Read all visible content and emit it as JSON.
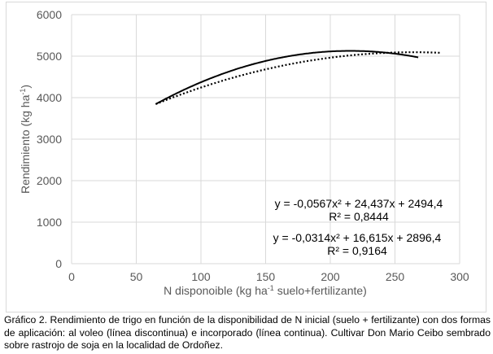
{
  "chart_data": {
    "type": "line",
    "xlabel": {
      "pre": "N disponoible (kg ha",
      "sup": "-1",
      "post": " suelo+fertilizante)"
    },
    "ylabel": {
      "pre": "Rendimiento (kg ha",
      "sup": "-1",
      "post": ")"
    },
    "xlim": [
      0,
      300
    ],
    "ylim": [
      0,
      6000
    ],
    "xticks": [
      "0",
      "50",
      "100",
      "150",
      "200",
      "250",
      "300"
    ],
    "yticks": [
      "0",
      "1000",
      "2000",
      "3000",
      "4000",
      "5000",
      "6000"
    ],
    "grid": true,
    "series": [
      {
        "name": "incorporado (línea continua)",
        "style": "solid",
        "color": "#000000",
        "coeffs": [
          -0.0567,
          24.437,
          2494.4
        ],
        "x_range": [
          65,
          268
        ],
        "equation": "y = -0,0567x² + 24,437x + 2494,4",
        "r2": "R² = 0,8444"
      },
      {
        "name": "al voleo (línea discontinua)",
        "style": "dotted",
        "color": "#000000",
        "coeffs": [
          -0.0314,
          16.615,
          2896.4
        ],
        "x_range": [
          65,
          285
        ],
        "equation": "y = -0,0314x² + 16,615x + 2896,4",
        "r2": "R² = 0,9164"
      }
    ]
  },
  "caption": "Gráfico 2. Rendimiento de trigo en función de la disponibilidad de N inicial (suelo + fertilizante) con dos formas de aplicación: al voleo (línea discontinua) e incorporado (línea continua). Cultivar Don Mario Ceibo sembrado sobre rastrojo de soja en la localidad de Ordoñez."
}
